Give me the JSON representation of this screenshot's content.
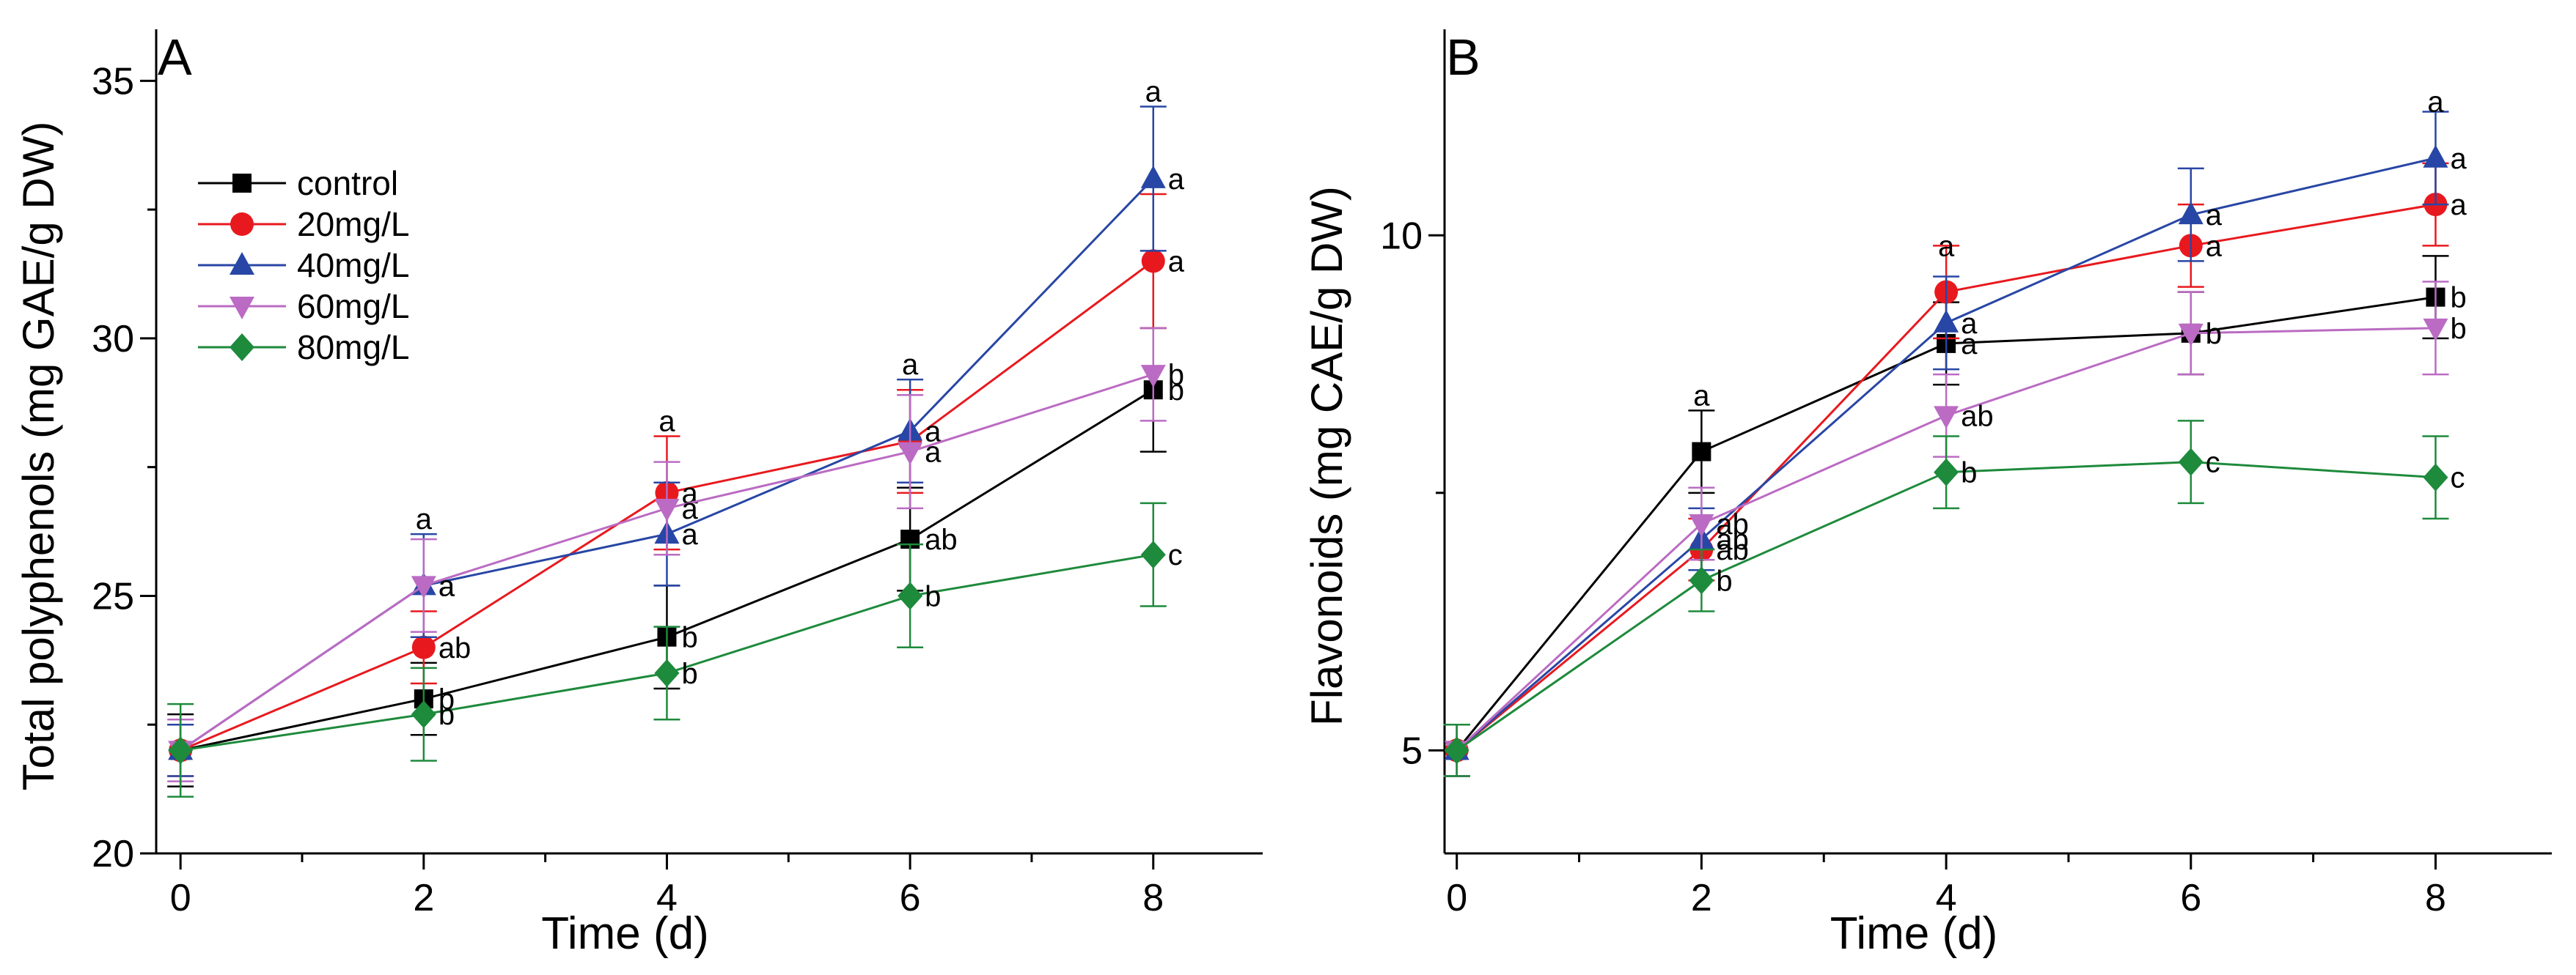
{
  "chart_data": [
    {
      "type": "line",
      "panel_label": "A",
      "xlabel": "Time (d)",
      "ylabel": "Total polyphenols (mg GAE/g DW)",
      "x": [
        0,
        2,
        4,
        6,
        8
      ],
      "xlim": [
        -0.2,
        8.9
      ],
      "ylim": [
        20,
        36
      ],
      "xticks": [
        "0",
        "2",
        "4",
        "6",
        "8"
      ],
      "yticks": [
        "20",
        "25",
        "30",
        "35"
      ],
      "legend": {
        "position": "top-left",
        "entries": [
          "control",
          "20mg/L",
          "40mg/L",
          "60mg/L",
          "80mg/L"
        ]
      },
      "series": [
        {
          "name": "control",
          "color": "#000000",
          "marker": "square",
          "values": [
            22.0,
            23.0,
            24.2,
            26.1,
            29.0
          ],
          "errors": [
            0.7,
            0.7,
            1.0,
            1.0,
            1.2
          ],
          "labels": [
            "",
            "b",
            "b",
            "ab",
            "b"
          ]
        },
        {
          "name": "20mg/L",
          "color": "#e8191e",
          "marker": "circle",
          "values": [
            22.0,
            24.0,
            27.0,
            28.0,
            31.5
          ],
          "errors": [
            0.5,
            0.7,
            1.1,
            1.0,
            1.3
          ],
          "labels": [
            "",
            "ab",
            "a",
            "",
            "a"
          ]
        },
        {
          "name": "40mg/L",
          "color": "#2846a5",
          "marker": "triangle-up",
          "values": [
            22.0,
            25.2,
            26.2,
            28.2,
            33.1
          ],
          "errors": [
            0.5,
            1.0,
            1.0,
            1.0,
            1.4
          ],
          "labels": [
            "",
            "a",
            "a",
            "a",
            "a"
          ]
        },
        {
          "name": "60mg/L",
          "color": "#bb6bc3",
          "marker": "triangle-down",
          "values": [
            22.0,
            25.2,
            26.7,
            27.8,
            29.3
          ],
          "errors": [
            0.6,
            0.9,
            0.9,
            1.1,
            0.9
          ],
          "labels": [
            "",
            "a",
            "a",
            "a",
            "b"
          ]
        },
        {
          "name": "80mg/L",
          "color": "#1e8a3c",
          "marker": "diamond",
          "values": [
            22.0,
            22.7,
            23.5,
            25.0,
            25.8
          ],
          "errors": [
            0.9,
            0.9,
            0.9,
            1.0,
            1.0
          ],
          "labels": [
            "",
            "b",
            "b",
            "b",
            "c"
          ]
        }
      ],
      "letters_above": [
        {
          "x": 2,
          "y": 26.3,
          "text": "a"
        },
        {
          "x": 4,
          "y": 28.2,
          "text": "a"
        },
        {
          "x": 6,
          "y": 29.3,
          "text": "a"
        },
        {
          "x": 8,
          "y": 34.6,
          "text": "a"
        }
      ]
    },
    {
      "type": "line",
      "panel_label": "B",
      "xlabel": "Time (d)",
      "ylabel": "Flavonoids (mg CAE/g DW)",
      "x": [
        0,
        2,
        4,
        6,
        8
      ],
      "xlim": [
        -0.1,
        8.95
      ],
      "ylim": [
        4,
        12
      ],
      "xticks": [
        "0",
        "2",
        "4",
        "6",
        "8"
      ],
      "yticks": [
        "5",
        "10"
      ],
      "series": [
        {
          "name": "control",
          "color": "#000000",
          "marker": "square",
          "values": [
            5.0,
            7.9,
            8.95,
            9.05,
            9.4
          ],
          "errors": [
            0.25,
            0.4,
            0.4,
            0.4,
            0.4
          ],
          "labels": [
            "",
            "",
            "a",
            "b",
            "b"
          ]
        },
        {
          "name": "20mg/L",
          "color": "#e8191e",
          "marker": "circle",
          "values": [
            5.0,
            6.95,
            9.45,
            9.9,
            10.3
          ],
          "errors": [
            0.25,
            0.3,
            0.45,
            0.4,
            0.4
          ],
          "labels": [
            "",
            "ab",
            "",
            "a",
            "a"
          ]
        },
        {
          "name": "40mg/L",
          "color": "#2846a5",
          "marker": "triangle-up",
          "values": [
            5.0,
            7.05,
            9.15,
            10.2,
            10.75
          ],
          "errors": [
            0.25,
            0.3,
            0.45,
            0.45,
            0.45
          ],
          "labels": [
            "",
            "ab",
            "a",
            "a",
            "a"
          ]
        },
        {
          "name": "60mg/L",
          "color": "#bb6bc3",
          "marker": "triangle-down",
          "values": [
            5.0,
            7.2,
            8.25,
            9.05,
            9.1
          ],
          "errors": [
            0.25,
            0.35,
            0.4,
            0.4,
            0.45
          ],
          "labels": [
            "",
            "ab",
            "ab",
            "b",
            "b"
          ]
        },
        {
          "name": "80mg/L",
          "color": "#1e8a3c",
          "marker": "diamond",
          "values": [
            5.0,
            6.65,
            7.7,
            7.8,
            7.65
          ],
          "errors": [
            0.25,
            0.3,
            0.35,
            0.4,
            0.4
          ],
          "labels": [
            "",
            "b",
            "b",
            "c",
            "c"
          ]
        }
      ],
      "letters_above": [
        {
          "x": 2,
          "y": 8.35,
          "text": "a"
        },
        {
          "x": 4,
          "y": 9.8,
          "text": "a"
        },
        {
          "x": 8,
          "y": 11.2,
          "text": "a"
        }
      ]
    }
  ]
}
